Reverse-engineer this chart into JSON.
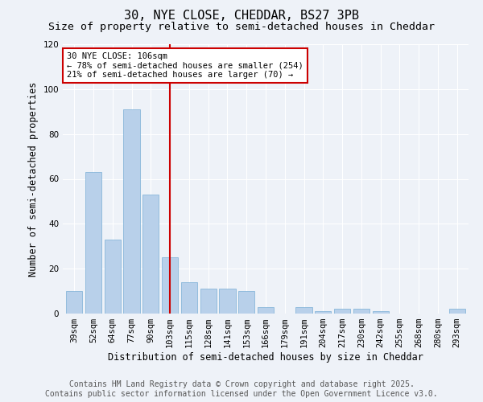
{
  "title": "30, NYE CLOSE, CHEDDAR, BS27 3PB",
  "subtitle": "Size of property relative to semi-detached houses in Cheddar",
  "xlabel": "Distribution of semi-detached houses by size in Cheddar",
  "ylabel": "Number of semi-detached properties",
  "categories": [
    "39sqm",
    "52sqm",
    "64sqm",
    "77sqm",
    "90sqm",
    "103sqm",
    "115sqm",
    "128sqm",
    "141sqm",
    "153sqm",
    "166sqm",
    "179sqm",
    "191sqm",
    "204sqm",
    "217sqm",
    "230sqm",
    "242sqm",
    "255sqm",
    "268sqm",
    "280sqm",
    "293sqm"
  ],
  "values": [
    10,
    63,
    33,
    91,
    53,
    25,
    14,
    11,
    11,
    10,
    3,
    0,
    3,
    1,
    2,
    2,
    1,
    0,
    0,
    0,
    2
  ],
  "bar_color": "#b8d0ea",
  "bar_edge_color": "#7aaed6",
  "vline_x_index": 5,
  "vline_color": "#cc0000",
  "annotation_title": "30 NYE CLOSE: 106sqm",
  "annotation_line1": "← 78% of semi-detached houses are smaller (254)",
  "annotation_line2": "21% of semi-detached houses are larger (70) →",
  "annotation_box_color": "#cc0000",
  "ylim": [
    0,
    120
  ],
  "yticks": [
    0,
    20,
    40,
    60,
    80,
    100,
    120
  ],
  "footer_line1": "Contains HM Land Registry data © Crown copyright and database right 2025.",
  "footer_line2": "Contains public sector information licensed under the Open Government Licence v3.0.",
  "background_color": "#eef2f8",
  "title_fontsize": 11,
  "subtitle_fontsize": 9.5,
  "axis_label_fontsize": 8.5,
  "tick_fontsize": 7.5,
  "footer_fontsize": 7,
  "annotation_fontsize": 7.5
}
